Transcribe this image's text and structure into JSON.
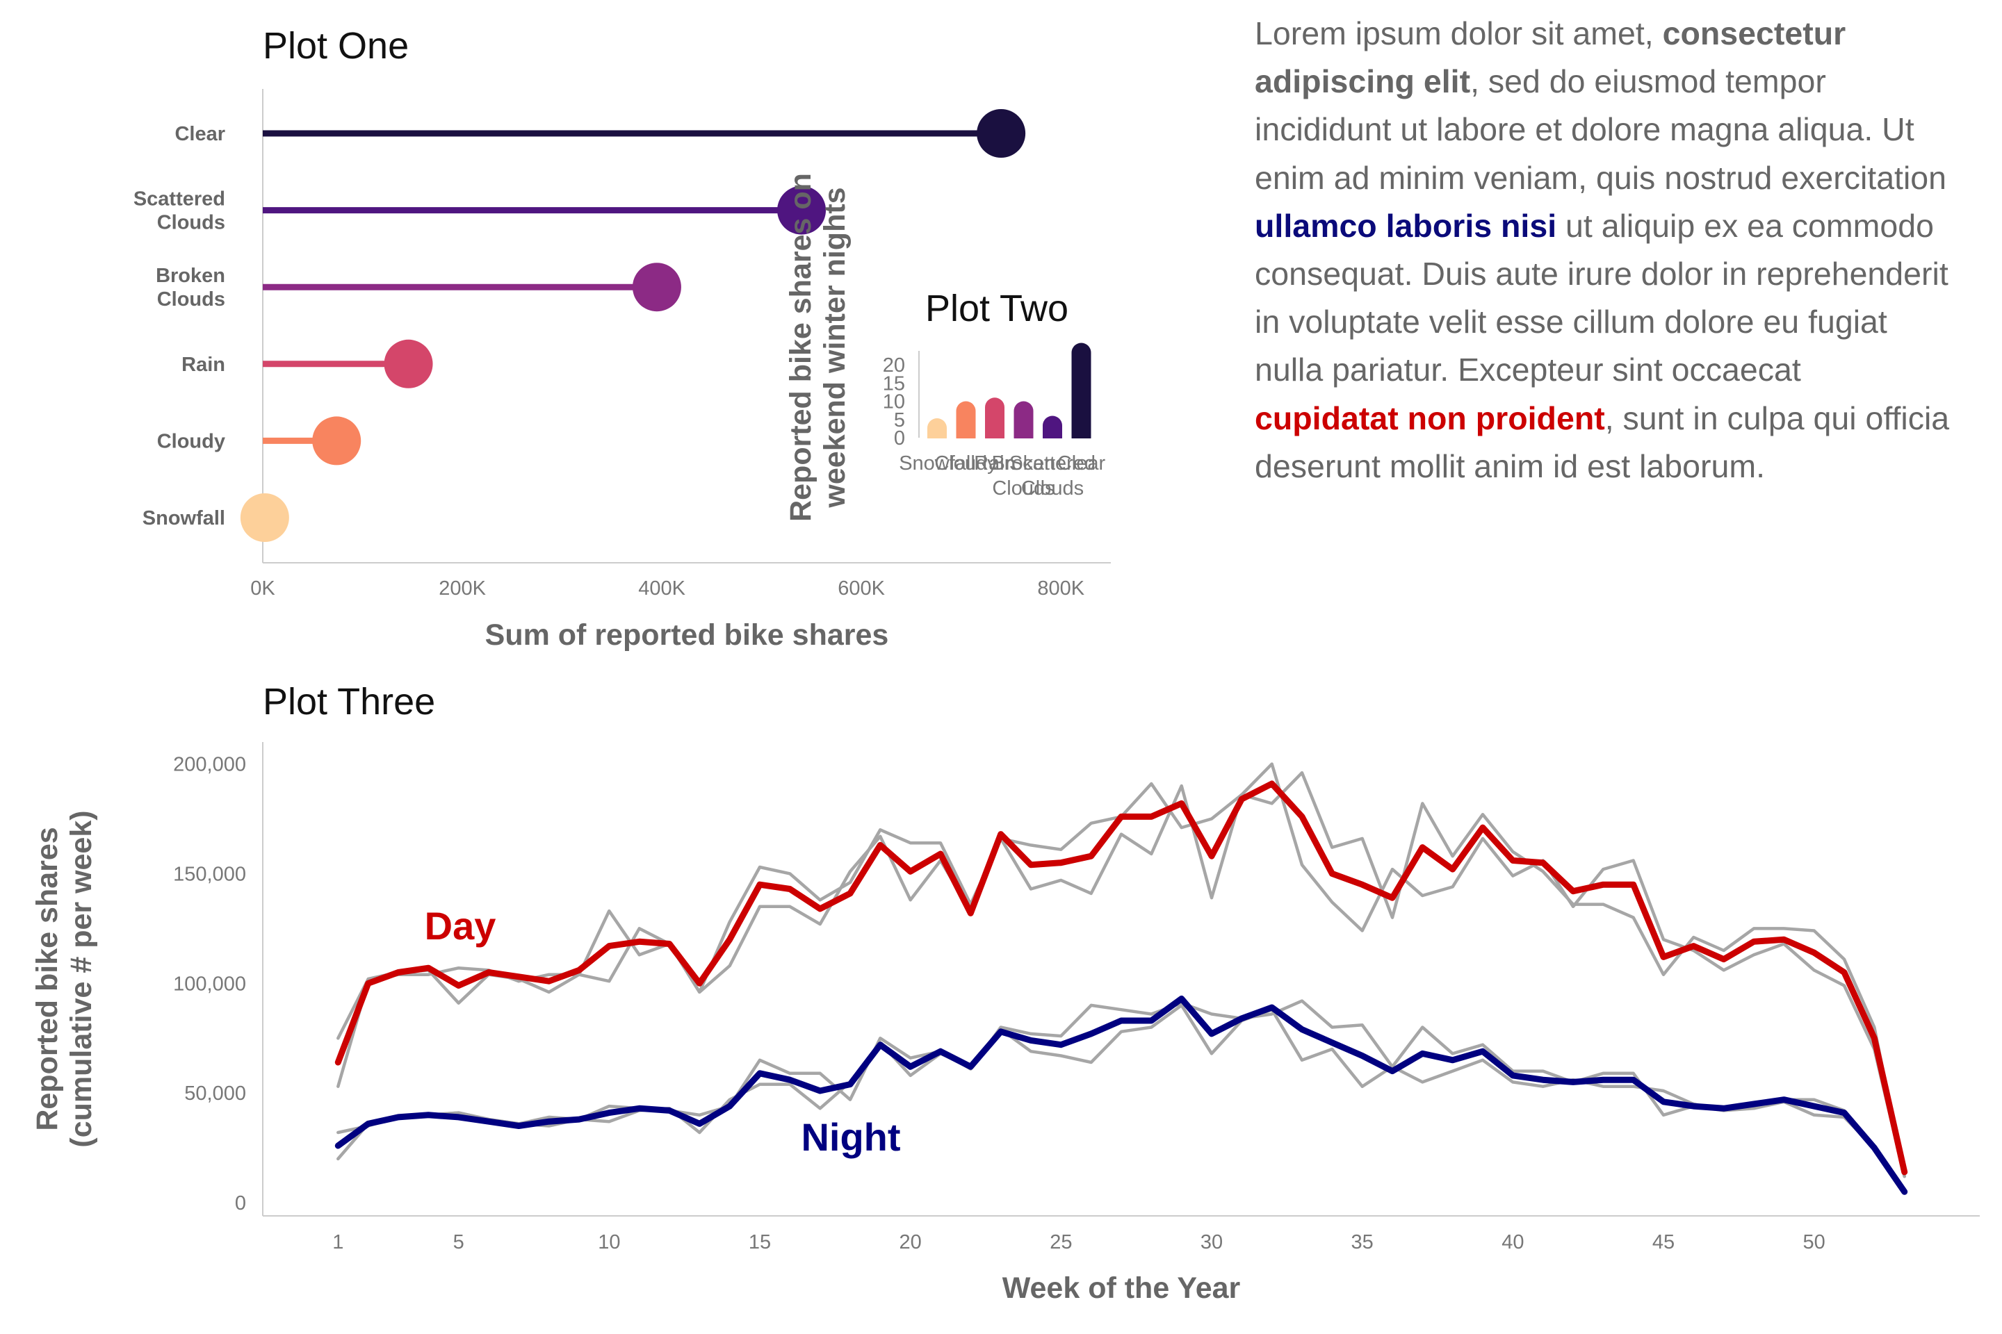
{
  "plot_one": {
    "title": "Plot One",
    "xlabel": "Sum of reported bike shares",
    "ylabel": "",
    "categories": [
      [
        "Clear"
      ],
      [
        "Scattered",
        "Clouds"
      ],
      [
        "Broken",
        "Clouds"
      ],
      [
        "Rain"
      ],
      [
        "Cloudy"
      ],
      [
        "Snowfall"
      ]
    ],
    "x_ticks": [
      "0K",
      "200K",
      "400K",
      "600K",
      "800K"
    ]
  },
  "plot_two": {
    "title": "Plot Two",
    "ylabel_lines": [
      "Reported bike shares on",
      "weekend winter nights"
    ],
    "y_ticks": [
      "0",
      "5",
      "10",
      "15",
      "20"
    ],
    "x_labels": [
      [
        "Snowfall"
      ],
      [
        "Cloudy"
      ],
      [
        "Rain"
      ],
      [
        "Broken",
        "Clouds"
      ],
      [
        "Scattered",
        "Clouds"
      ],
      [
        "Clear"
      ]
    ]
  },
  "plot_three": {
    "title": "Plot Three",
    "xlabel": "Week of the Year",
    "ylabel_lines": [
      "Reported bike shares",
      "(cumulative # per week)"
    ],
    "y_ticks": [
      "0",
      "50,000",
      "100,000",
      "150,000",
      "200,000"
    ],
    "x_ticks": [
      "1",
      "5",
      "10",
      "15",
      "20",
      "25",
      "30",
      "35",
      "40",
      "45",
      "50"
    ],
    "day_label": "Day",
    "night_label": "Night"
  },
  "text_block": [
    {
      "t": "Lorem ipsum dolor sit amet, ",
      "s": "n"
    },
    {
      "t": "consectetur adipiscing elit",
      "s": "b"
    },
    {
      "t": ", sed do eiusmod tempor incididunt ut labore et dolore magna aliqua. Ut enim ad minim veniam, quis nostrud exercitation ",
      "s": "n"
    },
    {
      "t": "ullamco laboris nisi",
      "s": "blue"
    },
    {
      "t": " ut aliquip ex ea commodo consequat. Duis aute irure dolor in reprehenderit in voluptate velit esse cillum dolore eu fugiat nulla pariatur. Excepteur sint occaecat ",
      "s": "n"
    },
    {
      "t": "cupidatat non proident",
      "s": "red"
    },
    {
      "t": ", sunt in culpa qui officia deserunt mollit anim id est laborum.",
      "s": "n"
    }
  ],
  "colors": {
    "day": "#cc0000",
    "night": "#000080",
    "gray_lines": "#a6a6a6",
    "axis": "#cccccc"
  },
  "chart_data": [
    {
      "type": "lollipop",
      "title": "Plot One",
      "xlabel": "Sum of reported bike shares",
      "categories": [
        "Clear",
        "Scattered Clouds",
        "Broken Clouds",
        "Rain",
        "Cloudy",
        "Snowfall"
      ],
      "values": [
        740000,
        540000,
        395000,
        146000,
        74000,
        2000
      ],
      "colors": [
        "#1a1040",
        "#4f1580",
        "#8c2a85",
        "#d4466a",
        "#f8845f",
        "#fdd09a"
      ],
      "xlim": [
        0,
        850000
      ]
    },
    {
      "type": "bar",
      "title": "Plot Two",
      "ylabel": "Reported bike shares on weekend winter nights",
      "categories": [
        "Snowfall",
        "Cloudy",
        "Rain",
        "Broken Clouds",
        "Scattered Clouds",
        "Clear"
      ],
      "values": [
        2,
        10,
        11,
        10,
        6,
        26
      ],
      "colors": [
        "#fdd09a",
        "#f8845f",
        "#d4466a",
        "#8c2a85",
        "#4f1580",
        "#1a1040"
      ],
      "ylim": [
        0,
        25
      ]
    },
    {
      "type": "line",
      "title": "Plot Three",
      "xlabel": "Week of the Year",
      "ylabel": "Reported bike shares (cumulative # per week)",
      "x": [
        1,
        2,
        3,
        4,
        5,
        6,
        7,
        8,
        9,
        10,
        11,
        12,
        13,
        14,
        15,
        16,
        17,
        18,
        19,
        20,
        21,
        22,
        23,
        24,
        25,
        26,
        27,
        28,
        29,
        30,
        31,
        32,
        33,
        34,
        35,
        36,
        37,
        38,
        39,
        40,
        41,
        42,
        43,
        44,
        45,
        46,
        47,
        48,
        49,
        50,
        51,
        52,
        53
      ],
      "xlim": [
        -1.5,
        55.5
      ],
      "ylim": [
        -6000,
        210000
      ],
      "series": [
        {
          "name": "Day",
          "color": "#cc0000",
          "values": [
            64000,
            100000,
            105000,
            107000,
            99000,
            105000,
            103000,
            101000,
            106000,
            117000,
            119000,
            118000,
            100000,
            120000,
            145000,
            143000,
            134000,
            141000,
            163000,
            151000,
            159000,
            132000,
            168000,
            154000,
            155000,
            158000,
            176000,
            176000,
            182000,
            158000,
            184000,
            191000,
            176000,
            150000,
            145000,
            139000,
            162000,
            152000,
            171000,
            156000,
            155000,
            142000,
            145000,
            145000,
            112000,
            117000,
            111000,
            119000,
            120000,
            114000,
            105000,
            75000,
            14000
          ]
        },
        {
          "name": "Night",
          "color": "#000080",
          "values": [
            26000,
            36000,
            39000,
            40000,
            39000,
            37000,
            35000,
            37000,
            38000,
            41000,
            43000,
            42000,
            36000,
            44000,
            59000,
            56000,
            51000,
            54000,
            72000,
            62000,
            69000,
            62000,
            78000,
            74000,
            72000,
            77000,
            83000,
            83000,
            93000,
            77000,
            84000,
            89000,
            79000,
            73000,
            67000,
            60000,
            68000,
            65000,
            69000,
            58000,
            56000,
            55000,
            56000,
            56000,
            46000,
            44000,
            43000,
            45000,
            47000,
            44000,
            41000,
            25000,
            5000
          ]
        },
        {
          "name": "",
          "color": "#a6a6a6",
          "values": [
            75000,
            102000,
            105000,
            106000,
            91000,
            104000,
            102000,
            96000,
            104000,
            101000,
            125000,
            118000,
            96000,
            128000,
            153000,
            150000,
            138000,
            146000,
            170000,
            164000,
            164000,
            136000,
            166000,
            163000,
            161000,
            173000,
            176000,
            191000,
            171000,
            175000,
            186000,
            182000,
            196000,
            162000,
            166000,
            130000,
            182000,
            158000,
            177000,
            160000,
            151000,
            136000,
            136000,
            130000,
            104000,
            121000,
            115000,
            125000,
            125000,
            124000,
            111000,
            80000,
            12000
          ]
        },
        {
          "name": "",
          "color": "#a6a6a6",
          "values": [
            53000,
            101000,
            104000,
            104000,
            107000,
            106000,
            101000,
            104000,
            104000,
            133000,
            113000,
            118000,
            96000,
            108000,
            135000,
            135000,
            127000,
            151000,
            167000,
            138000,
            156000,
            133000,
            166000,
            143000,
            147000,
            141000,
            168000,
            159000,
            190000,
            139000,
            186000,
            200000,
            154000,
            137000,
            124000,
            152000,
            140000,
            144000,
            166000,
            149000,
            156000,
            135000,
            152000,
            156000,
            120000,
            115000,
            106000,
            113000,
            118000,
            106000,
            99000,
            70000,
            12000
          ]
        },
        {
          "name": "",
          "color": "#a6a6a6",
          "values": [
            32000,
            35000,
            39000,
            40000,
            41000,
            38000,
            36000,
            39000,
            38000,
            44000,
            43000,
            42000,
            40000,
            44000,
            65000,
            59000,
            59000,
            47000,
            75000,
            66000,
            69000,
            61000,
            80000,
            77000,
            76000,
            90000,
            88000,
            86000,
            91000,
            86000,
            84000,
            86000,
            92000,
            80000,
            81000,
            62000,
            80000,
            68000,
            72000,
            60000,
            60000,
            55000,
            59000,
            59000,
            40000,
            44000,
            42000,
            45000,
            47000,
            47000,
            42000,
            25000,
            5000
          ]
        },
        {
          "name": "",
          "color": "#a6a6a6",
          "values": [
            20000,
            36000,
            39000,
            40000,
            41000,
            38000,
            36000,
            35000,
            38000,
            37000,
            42000,
            43000,
            32000,
            47000,
            54000,
            54000,
            43000,
            55000,
            73000,
            58000,
            68000,
            62000,
            79000,
            69000,
            67000,
            64000,
            78000,
            80000,
            90000,
            68000,
            83000,
            88000,
            65000,
            70000,
            53000,
            62000,
            55000,
            60000,
            65000,
            55000,
            53000,
            56000,
            53000,
            53000,
            51000,
            45000,
            42000,
            43000,
            46000,
            40000,
            39000,
            25000,
            5000
          ]
        }
      ]
    }
  ]
}
